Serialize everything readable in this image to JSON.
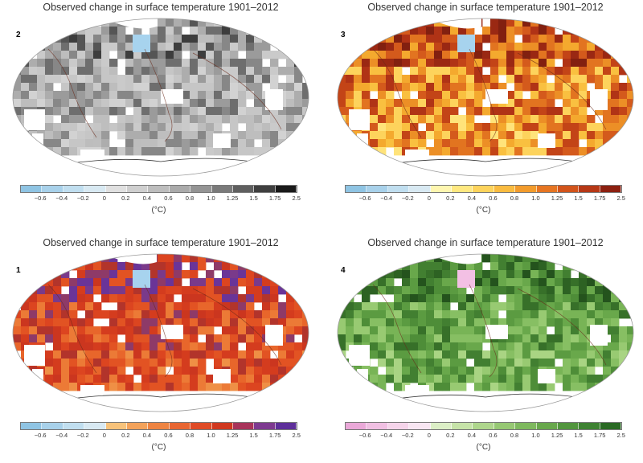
{
  "panels": [
    {
      "id": "p2",
      "number": "2",
      "title": "Observed change in surface temperature 1901–2012",
      "unit": "(°C)",
      "ticks": [
        "−0.6",
        "−0.4",
        "−0.2",
        "0",
        "0.2",
        "0.4",
        "0.6",
        "0.8",
        "1.0",
        "1.25",
        "1.5",
        "1.75",
        "2.5"
      ],
      "palette": [
        "#c8c8c8",
        "#bebebe",
        "#c6c6c6",
        "#d2d2d2",
        "#cacaca",
        "#bdbdbd",
        "#adadad",
        "#9b9b9b",
        "#878787",
        "#6e6e6e",
        "#555555",
        "#3d3d3d",
        "#1f1f1f"
      ],
      "colorbar_colors": [
        "#8fc4e3",
        "#a8d1ea",
        "#c0deef",
        "#d8e9f2",
        "#e0e0e0",
        "#cfcfcf",
        "#bdbdbd",
        "#aaaaaa",
        "#949494",
        "#7a7a7a",
        "#5f5f5f",
        "#3f3f3f",
        "#1a1a1a"
      ],
      "anomaly_color": "#a7d3ee"
    },
    {
      "id": "p3",
      "number": "3",
      "title": "Observed change in surface temperature 1901–2012",
      "unit": "(°C)",
      "ticks": [
        "−0.6",
        "−0.4",
        "−0.2",
        "0",
        "0.2",
        "0.4",
        "0.6",
        "0.8",
        "1.0",
        "1.25",
        "1.5",
        "1.75",
        "2.5"
      ],
      "palette": [
        "#fff2a6",
        "#ffe37a",
        "#fdd35c",
        "#f9c040",
        "#f4a92e",
        "#ec8f26",
        "#e27420",
        "#d45a1c",
        "#c34417",
        "#b03316",
        "#9a2813",
        "#822010",
        "#e8b038"
      ],
      "colorbar_colors": [
        "#8fc4e3",
        "#a8d1ea",
        "#c0deef",
        "#d8e9f2",
        "#fff6b0",
        "#ffe880",
        "#fdd35c",
        "#f9bb40",
        "#f29b2c",
        "#e67522",
        "#d2541b",
        "#b63816",
        "#8c2010"
      ],
      "anomaly_color": "#a7d3ee"
    },
    {
      "id": "p1",
      "number": "1",
      "title": "Observed change in surface temperature 1901–2012",
      "unit": "(°C)",
      "ticks": [
        "−0.6",
        "−0.4",
        "−0.2",
        "0",
        "0.2",
        "0.4",
        "0.6",
        "0.8",
        "1.0",
        "1.25",
        "1.5",
        "1.75",
        "2.5"
      ],
      "palette": [
        "#f2a25a",
        "#ef8f45",
        "#ec7a36",
        "#e8662b",
        "#e25323",
        "#dc4520",
        "#d43c1e",
        "#cb361f",
        "#b2342b",
        "#8e3a68",
        "#7a3a8a",
        "#6a3498",
        "#e6702f"
      ],
      "colorbar_colors": [
        "#8fc4e3",
        "#a8d1ea",
        "#c0deef",
        "#d8e9f2",
        "#f7c27a",
        "#f3a25a",
        "#ee8442",
        "#e86632",
        "#df4b26",
        "#d0381f",
        "#a8345a",
        "#7e3a90",
        "#5e2f9a"
      ],
      "anomaly_color": "#a7d3ee"
    },
    {
      "id": "p4",
      "number": "4",
      "title": "Observed change in surface temperature 1901–2012",
      "unit": "(°C)",
      "ticks": [
        "−0.6",
        "−0.4",
        "−0.2",
        "0",
        "0.2",
        "0.4",
        "0.6",
        "0.8",
        "1.0",
        "1.25",
        "1.5",
        "1.75",
        "2.5"
      ],
      "palette": [
        "#b9de93",
        "#a9d483",
        "#98ca72",
        "#87bf63",
        "#78b456",
        "#69a84b",
        "#5b9b41",
        "#4e8d38",
        "#427f31",
        "#377029",
        "#2d6223",
        "#24531d",
        "#9fcd7a"
      ],
      "colorbar_colors": [
        "#eaa8d8",
        "#f0bfe2",
        "#f5d4ea",
        "#f8e6f2",
        "#dcefc6",
        "#c6e3a8",
        "#aed68c",
        "#96c873",
        "#7eb95e",
        "#68a84c",
        "#52963e",
        "#3e8232",
        "#2a6a24"
      ],
      "anomaly_color": "#f3c0e4"
    }
  ],
  "credit": " "
}
